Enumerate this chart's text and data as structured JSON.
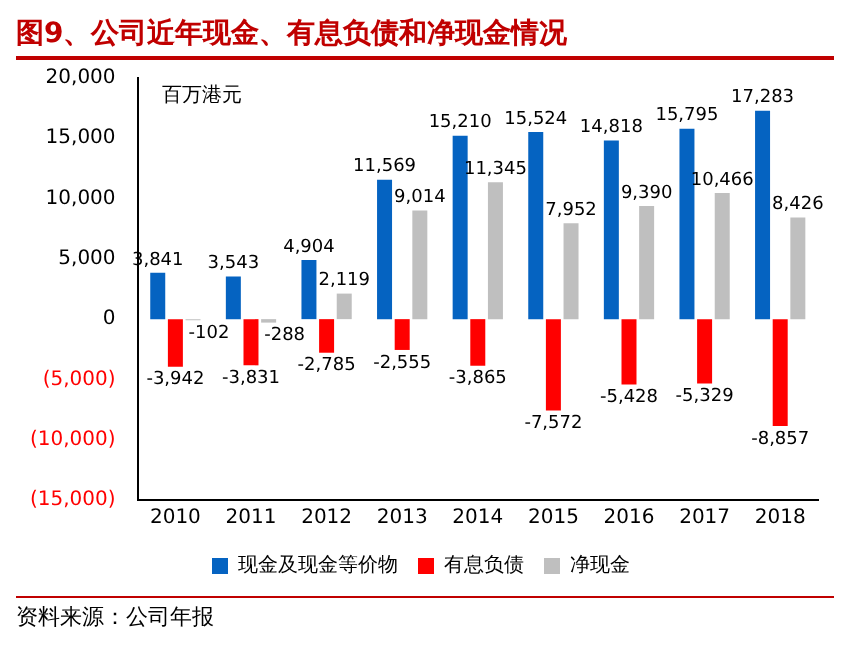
{
  "chart_data": {
    "type": "bar",
    "title": "图9、公司近年现金、有息负债和净现金情况",
    "categories": [
      "2010",
      "2011",
      "2012",
      "2013",
      "2014",
      "2015",
      "2016",
      "2017",
      "2018"
    ],
    "series": [
      {
        "name": "现金及现金等价物",
        "color": "#0563c1",
        "values": [
          3841,
          3543,
          4904,
          11569,
          15210,
          15524,
          14818,
          15795,
          17283
        ],
        "value_labels": [
          "3,841",
          "3,543",
          "4,904",
          "11,569",
          "15,210",
          "15,524",
          "14,818",
          "15,795",
          "17,283"
        ]
      },
      {
        "name": "有息负债",
        "color": "#ff0000",
        "values": [
          -3942,
          -3831,
          -2785,
          -2555,
          -3865,
          -7572,
          -5428,
          -5329,
          -8857
        ],
        "value_labels": [
          "-3,942",
          "-3,831",
          "-2,785",
          "-2,555",
          "-3,865",
          "-7,572",
          "-5,428",
          "-5,329",
          "-8,857"
        ]
      },
      {
        "name": "净现金",
        "color": "#bfbfbf",
        "values": [
          -102,
          -288,
          2119,
          9014,
          11345,
          7952,
          9390,
          10466,
          8426
        ],
        "value_labels": [
          "-102",
          "-288",
          "2,119",
          "9,014",
          "11,345",
          "7,952",
          "9,390",
          "10,466",
          "8,426"
        ]
      }
    ],
    "ylim": [
      -15000,
      20000
    ],
    "yticks": [
      {
        "value": -15000,
        "label": "(15,000)"
      },
      {
        "value": -10000,
        "label": "(10,000)"
      },
      {
        "value": -5000,
        "label": "(5,000)"
      },
      0,
      {
        "value": 5000,
        "label": "5,000"
      },
      {
        "value": 10000,
        "label": "10,000"
      },
      {
        "value": 15000,
        "label": "15,000"
      },
      {
        "value": 20000,
        "label": "20,000"
      }
    ],
    "grid": false,
    "legend": "bottom",
    "annotations": [
      "百万港元",
      "资料来源：公司年报"
    ]
  }
}
